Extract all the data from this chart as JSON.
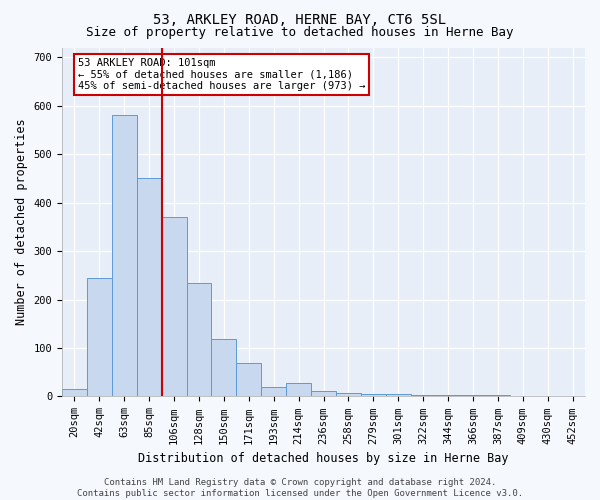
{
  "title": "53, ARKLEY ROAD, HERNE BAY, CT6 5SL",
  "subtitle": "Size of property relative to detached houses in Herne Bay",
  "xlabel": "Distribution of detached houses by size in Herne Bay",
  "ylabel": "Number of detached properties",
  "bin_labels": [
    "20sqm",
    "42sqm",
    "63sqm",
    "85sqm",
    "106sqm",
    "128sqm",
    "150sqm",
    "171sqm",
    "193sqm",
    "214sqm",
    "236sqm",
    "258sqm",
    "279sqm",
    "301sqm",
    "322sqm",
    "344sqm",
    "366sqm",
    "387sqm",
    "409sqm",
    "430sqm",
    "452sqm"
  ],
  "bar_values": [
    15,
    245,
    580,
    450,
    370,
    235,
    118,
    70,
    20,
    28,
    12,
    8,
    6,
    5,
    4,
    3,
    2,
    2,
    1,
    1,
    0
  ],
  "bar_color": "#c8d9ef",
  "bar_edge_color": "#5b9bd5",
  "vline_x": 3.5,
  "vline_color": "#cc0000",
  "annotation_text": "53 ARKLEY ROAD: 101sqm\n← 55% of detached houses are smaller (1,186)\n45% of semi-detached houses are larger (973) →",
  "annotation_box_facecolor": "#ffffff",
  "annotation_box_edgecolor": "#cc0000",
  "ylim": [
    0,
    720
  ],
  "yticks": [
    0,
    100,
    200,
    300,
    400,
    500,
    600,
    700
  ],
  "footer_text": "Contains HM Land Registry data © Crown copyright and database right 2024.\nContains public sector information licensed under the Open Government Licence v3.0.",
  "plot_bg_color": "#e8eef7",
  "fig_bg_color": "#f5f8fd",
  "title_fontsize": 10,
  "subtitle_fontsize": 9,
  "axis_label_fontsize": 8.5,
  "tick_fontsize": 7.5,
  "annotation_fontsize": 7.5,
  "footer_fontsize": 6.5
}
